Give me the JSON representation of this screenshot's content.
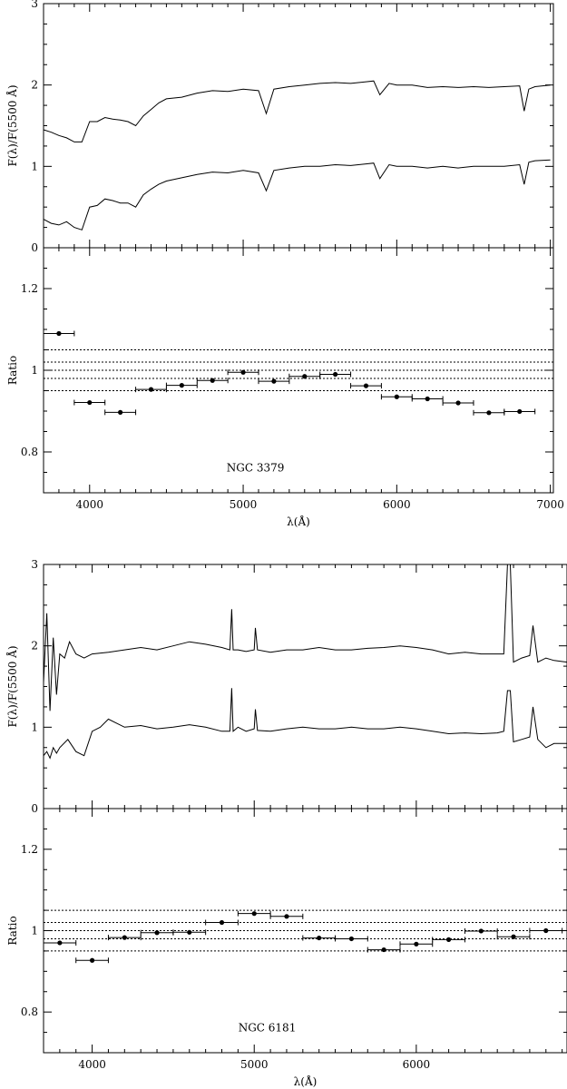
{
  "figure": {
    "background": "#ffffff",
    "ink": "#000000"
  },
  "chart_data": [
    {
      "id": "ngc3379-flux",
      "type": "line",
      "xlim": [
        3700,
        7020
      ],
      "ylim": [
        0,
        3
      ],
      "ylabel": "F(λ)/F(5500 Å)",
      "yticks": [
        "0",
        "1",
        "2",
        "3"
      ],
      "series": [
        {
          "x": [
            3700,
            3750,
            3800,
            3850,
            3900,
            3950,
            4000,
            4050,
            4100,
            4150,
            4200,
            4250,
            4300,
            4350,
            4400,
            4450,
            4500,
            4600,
            4700,
            4800,
            4900,
            5000,
            5100,
            5150,
            5200,
            5300,
            5400,
            5500,
            5600,
            5700,
            5800,
            5850,
            5890,
            5950,
            6000,
            6100,
            6200,
            6300,
            6400,
            6500,
            6600,
            6700,
            6800,
            6830,
            6860,
            6900,
            7000
          ],
          "y": [
            1.45,
            1.42,
            1.38,
            1.35,
            1.3,
            1.3,
            1.55,
            1.55,
            1.6,
            1.58,
            1.57,
            1.55,
            1.5,
            1.62,
            1.7,
            1.78,
            1.83,
            1.85,
            1.9,
            1.93,
            1.92,
            1.95,
            1.93,
            1.65,
            1.95,
            1.98,
            2.0,
            2.02,
            2.03,
            2.02,
            2.04,
            2.05,
            1.88,
            2.02,
            2.0,
            2.0,
            1.97,
            1.98,
            1.97,
            1.98,
            1.97,
            1.98,
            1.99,
            1.68,
            1.95,
            1.98,
            2.0
          ]
        },
        {
          "x": [
            3700,
            3750,
            3800,
            3850,
            3900,
            3950,
            4000,
            4050,
            4100,
            4150,
            4200,
            4250,
            4300,
            4350,
            4400,
            4450,
            4500,
            4600,
            4700,
            4800,
            4900,
            5000,
            5100,
            5150,
            5200,
            5300,
            5400,
            5500,
            5600,
            5700,
            5800,
            5850,
            5890,
            5950,
            6000,
            6100,
            6200,
            6300,
            6400,
            6500,
            6600,
            6700,
            6800,
            6830,
            6860,
            6900,
            7000
          ],
          "y": [
            0.35,
            0.3,
            0.28,
            0.32,
            0.25,
            0.22,
            0.5,
            0.52,
            0.6,
            0.58,
            0.55,
            0.55,
            0.5,
            0.65,
            0.72,
            0.78,
            0.82,
            0.86,
            0.9,
            0.93,
            0.92,
            0.95,
            0.92,
            0.7,
            0.95,
            0.98,
            1.0,
            1.0,
            1.02,
            1.01,
            1.03,
            1.04,
            0.85,
            1.02,
            1.0,
            1.0,
            0.98,
            1.0,
            0.98,
            1.0,
            1.0,
            1.0,
            1.02,
            0.78,
            1.05,
            1.07,
            1.08
          ]
        }
      ]
    },
    {
      "id": "ngc3379-ratio",
      "type": "scatter",
      "xlim": [
        3700,
        7020
      ],
      "ylim": [
        0.7,
        1.3
      ],
      "ylabel": "Ratio",
      "xlabel": "λ(Å)",
      "yticks": [
        "0.8",
        "1",
        "1.2"
      ],
      "xticks": [
        "4000",
        "5000",
        "6000",
        "7000"
      ],
      "hlines": [
        0.95,
        0.98,
        1.0,
        1.02,
        1.05
      ],
      "annotation": "NGC 3379",
      "points": [
        {
          "x": 3800,
          "y": 1.09
        },
        {
          "x": 4000,
          "y": 0.921
        },
        {
          "x": 4200,
          "y": 0.897
        },
        {
          "x": 4400,
          "y": 0.953
        },
        {
          "x": 4600,
          "y": 0.963
        },
        {
          "x": 4800,
          "y": 0.975
        },
        {
          "x": 5000,
          "y": 0.995
        },
        {
          "x": 5200,
          "y": 0.973
        },
        {
          "x": 5400,
          "y": 0.985
        },
        {
          "x": 5600,
          "y": 0.99
        },
        {
          "x": 5800,
          "y": 0.962
        },
        {
          "x": 6000,
          "y": 0.935
        },
        {
          "x": 6200,
          "y": 0.93
        },
        {
          "x": 6400,
          "y": 0.92
        },
        {
          "x": 6600,
          "y": 0.896
        },
        {
          "x": 6800,
          "y": 0.899
        }
      ],
      "xerr": 100
    },
    {
      "id": "ngc6181-flux",
      "type": "line",
      "xlim": [
        3700,
        6930
      ],
      "ylim": [
        0,
        3
      ],
      "ylabel": "F(λ)/F(5500 Å)",
      "yticks": [
        "0",
        "1",
        "2",
        "3"
      ],
      "series": [
        {
          "x": [
            3700,
            3720,
            3740,
            3760,
            3780,
            3800,
            3830,
            3860,
            3900,
            3950,
            4000,
            4100,
            4200,
            4300,
            4400,
            4500,
            4600,
            4700,
            4800,
            4850,
            4861,
            4870,
            4900,
            4950,
            5000,
            5007,
            5020,
            5100,
            5200,
            5300,
            5400,
            5500,
            5600,
            5700,
            5800,
            5900,
            6000,
            6100,
            6200,
            6300,
            6400,
            6500,
            6540,
            6563,
            6580,
            6600,
            6650,
            6700,
            6720,
            6750,
            6800,
            6850,
            6930
          ],
          "y": [
            1.55,
            2.4,
            1.2,
            2.1,
            1.4,
            1.9,
            1.85,
            2.05,
            1.9,
            1.85,
            1.9,
            1.92,
            1.95,
            1.98,
            1.95,
            2.0,
            2.05,
            2.02,
            1.98,
            1.95,
            2.45,
            1.95,
            1.95,
            1.93,
            1.95,
            2.22,
            1.95,
            1.92,
            1.95,
            1.95,
            1.98,
            1.95,
            1.95,
            1.97,
            1.98,
            2.0,
            1.98,
            1.95,
            1.9,
            1.92,
            1.9,
            1.9,
            1.9,
            3.0,
            3.0,
            1.8,
            1.85,
            1.88,
            2.25,
            1.8,
            1.85,
            1.82,
            1.8
          ]
        },
        {
          "x": [
            3700,
            3720,
            3740,
            3760,
            3780,
            3800,
            3850,
            3900,
            3950,
            4000,
            4050,
            4100,
            4200,
            4300,
            4400,
            4500,
            4600,
            4700,
            4800,
            4850,
            4861,
            4870,
            4900,
            4950,
            5000,
            5007,
            5020,
            5100,
            5200,
            5300,
            5400,
            5500,
            5600,
            5700,
            5800,
            5900,
            6000,
            6100,
            6200,
            6300,
            6400,
            6500,
            6540,
            6563,
            6580,
            6600,
            6650,
            6700,
            6720,
            6750,
            6800,
            6850,
            6930
          ],
          "y": [
            0.65,
            0.7,
            0.62,
            0.75,
            0.68,
            0.75,
            0.85,
            0.7,
            0.65,
            0.95,
            1.0,
            1.1,
            1.0,
            1.02,
            0.98,
            1.0,
            1.03,
            1.0,
            0.95,
            0.95,
            1.48,
            0.95,
            1.0,
            0.95,
            0.98,
            1.22,
            0.96,
            0.95,
            0.98,
            1.0,
            0.98,
            0.98,
            1.0,
            0.98,
            0.98,
            1.0,
            0.98,
            0.95,
            0.92,
            0.93,
            0.92,
            0.93,
            0.95,
            1.45,
            1.45,
            0.82,
            0.85,
            0.88,
            1.25,
            0.85,
            0.75,
            0.8,
            0.8
          ]
        }
      ]
    },
    {
      "id": "ngc6181-ratio",
      "type": "scatter",
      "xlim": [
        3700,
        6930
      ],
      "ylim": [
        0.7,
        1.3
      ],
      "ylabel": "Ratio",
      "xlabel": "λ(Å)",
      "yticks": [
        "0.8",
        "1",
        "1.2"
      ],
      "xticks": [
        "4000",
        "5000",
        "6000"
      ],
      "hlines": [
        0.95,
        0.98,
        1.0,
        1.02,
        1.05
      ],
      "annotation": "NGC 6181",
      "points": [
        {
          "x": 3800,
          "y": 0.97
        },
        {
          "x": 4000,
          "y": 0.927
        },
        {
          "x": 4200,
          "y": 0.983
        },
        {
          "x": 4400,
          "y": 0.995
        },
        {
          "x": 4600,
          "y": 0.996
        },
        {
          "x": 4800,
          "y": 1.02
        },
        {
          "x": 5000,
          "y": 1.042
        },
        {
          "x": 5200,
          "y": 1.035
        },
        {
          "x": 5400,
          "y": 0.982
        },
        {
          "x": 5600,
          "y": 0.98
        },
        {
          "x": 5800,
          "y": 0.953
        },
        {
          "x": 6000,
          "y": 0.967
        },
        {
          "x": 6200,
          "y": 0.978
        },
        {
          "x": 6400,
          "y": 0.999
        },
        {
          "x": 6600,
          "y": 0.985
        },
        {
          "x": 6800,
          "y": 1.0
        }
      ],
      "xerr": 100
    }
  ]
}
